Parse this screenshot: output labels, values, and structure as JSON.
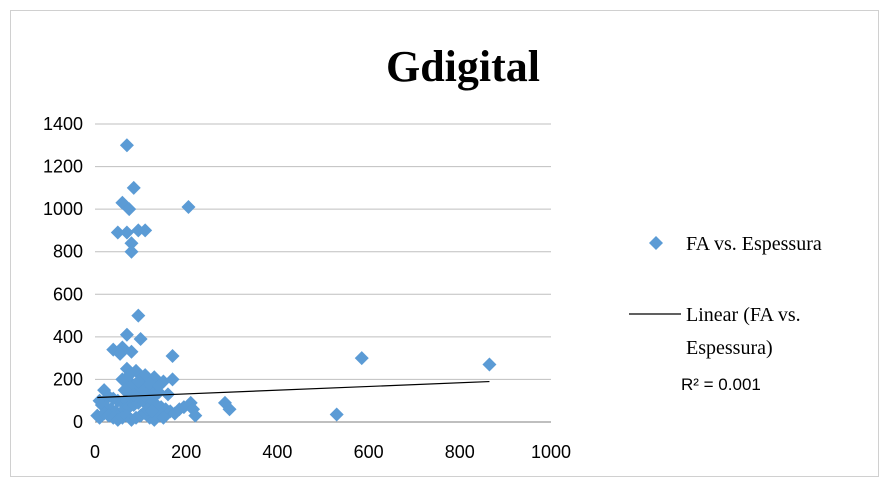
{
  "chart_data": {
    "type": "scatter",
    "title": "Gdigital",
    "xlabel": "",
    "ylabel": "",
    "xlim": [
      0,
      1000
    ],
    "ylim": [
      0,
      1400
    ],
    "x_ticks": [
      "0",
      "200",
      "400",
      "600",
      "800",
      "1000"
    ],
    "y_ticks": [
      "0",
      "200",
      "400",
      "600",
      "800",
      "1000",
      "1200",
      "1400"
    ],
    "grid": "horizontal",
    "legend_position": "right",
    "series": [
      {
        "name": "FA vs. Espessura",
        "color": "#5b9bd5",
        "marker": "diamond",
        "points": [
          [
            70,
            1300
          ],
          [
            85,
            1100
          ],
          [
            60,
            1030
          ],
          [
            75,
            1000
          ],
          [
            205,
            1010
          ],
          [
            50,
            890
          ],
          [
            70,
            890
          ],
          [
            95,
            900
          ],
          [
            110,
            900
          ],
          [
            80,
            840
          ],
          [
            80,
            800
          ],
          [
            95,
            500
          ],
          [
            70,
            410
          ],
          [
            100,
            390
          ],
          [
            40,
            340
          ],
          [
            60,
            350
          ],
          [
            55,
            320
          ],
          [
            80,
            330
          ],
          [
            170,
            310
          ],
          [
            585,
            300
          ],
          [
            865,
            270
          ],
          [
            70,
            250
          ],
          [
            90,
            240
          ],
          [
            110,
            220
          ],
          [
            130,
            210
          ],
          [
            150,
            190
          ],
          [
            170,
            200
          ],
          [
            60,
            200
          ],
          [
            80,
            180
          ],
          [
            100,
            160
          ],
          [
            120,
            150
          ],
          [
            140,
            140
          ],
          [
            160,
            130
          ],
          [
            20,
            150
          ],
          [
            30,
            120
          ],
          [
            40,
            110
          ],
          [
            50,
            100
          ],
          [
            60,
            90
          ],
          [
            70,
            100
          ],
          [
            10,
            100
          ],
          [
            15,
            80
          ],
          [
            25,
            70
          ],
          [
            35,
            60
          ],
          [
            45,
            50
          ],
          [
            55,
            40
          ],
          [
            65,
            60
          ],
          [
            75,
            70
          ],
          [
            85,
            80
          ],
          [
            95,
            90
          ],
          [
            105,
            100
          ],
          [
            115,
            110
          ],
          [
            125,
            90
          ],
          [
            135,
            80
          ],
          [
            145,
            70
          ],
          [
            155,
            60
          ],
          [
            165,
            50
          ],
          [
            175,
            40
          ],
          [
            185,
            60
          ],
          [
            195,
            70
          ],
          [
            210,
            90
          ],
          [
            215,
            60
          ],
          [
            220,
            30
          ],
          [
            285,
            90
          ],
          [
            295,
            60
          ],
          [
            530,
            35
          ],
          [
            5,
            30
          ],
          [
            10,
            20
          ],
          [
            20,
            40
          ],
          [
            30,
            30
          ],
          [
            40,
            20
          ],
          [
            50,
            10
          ],
          [
            60,
            20
          ],
          [
            70,
            30
          ],
          [
            80,
            10
          ],
          [
            90,
            20
          ],
          [
            100,
            30
          ],
          [
            110,
            40
          ],
          [
            120,
            20
          ],
          [
            130,
            10
          ],
          [
            140,
            30
          ],
          [
            150,
            20
          ],
          [
            90,
            120
          ],
          [
            110,
            130
          ],
          [
            130,
            120
          ],
          [
            100,
            200
          ],
          [
            120,
            180
          ],
          [
            140,
            170
          ],
          [
            65,
            150
          ],
          [
            85,
            130
          ],
          [
            75,
            220
          ],
          [
            95,
            190
          ],
          [
            115,
            60
          ],
          [
            125,
            50
          ]
        ]
      }
    ],
    "trendline": {
      "name": "Linear (FA vs. Espessura)",
      "type": "linear",
      "color": "#000000",
      "x_start": 5,
      "y_start": 115,
      "x_end": 865,
      "y_end": 190,
      "r_squared_label": "R² = 0.001"
    }
  }
}
